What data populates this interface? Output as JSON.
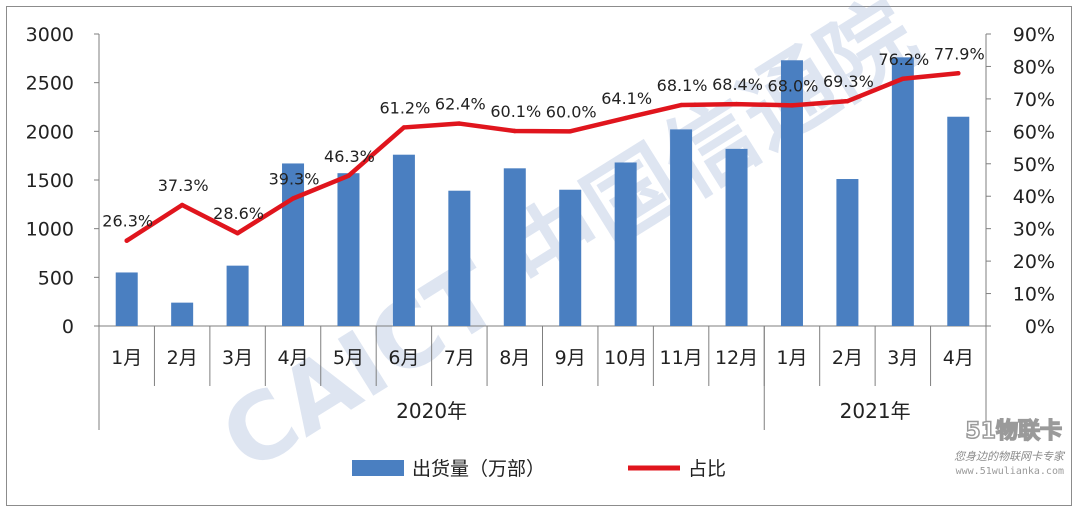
{
  "chart_data": {
    "type": "bar",
    "categories": [
      "1月",
      "2月",
      "3月",
      "4月",
      "5月",
      "6月",
      "7月",
      "8月",
      "9月",
      "10月",
      "11月",
      "12月",
      "1月",
      "2月",
      "3月",
      "4月"
    ],
    "groups": [
      {
        "label": "2020年",
        "count": 12
      },
      {
        "label": "2021年",
        "count": 4
      }
    ],
    "series": [
      {
        "name": "出货量（万部）",
        "type": "bar",
        "axis": "left",
        "color": "#4a7fc1",
        "values": [
          550,
          240,
          620,
          1670,
          1570,
          1760,
          1390,
          1620,
          1400,
          1680,
          2020,
          1820,
          2730,
          1510,
          2760,
          2150
        ]
      },
      {
        "name": "占比",
        "type": "line",
        "axis": "right",
        "color": "#e0151d",
        "values": [
          26.3,
          37.3,
          28.6,
          39.3,
          46.3,
          61.2,
          62.4,
          60.1,
          60.0,
          64.1,
          68.1,
          68.4,
          68.0,
          69.3,
          76.2,
          77.9
        ],
        "labels": [
          "26.3%",
          "37.3%",
          "28.6%",
          "39.3%",
          "46.3%",
          "61.2%",
          "62.4%",
          "60.1%",
          "60.0%",
          "64.1%",
          "68.1%",
          "68.4%",
          "68.0%",
          "69.3%",
          "76.2%",
          "77.9%"
        ]
      }
    ],
    "y_left": {
      "min": 0,
      "max": 3000,
      "ticks": [
        "0",
        "500",
        "1000",
        "1500",
        "2000",
        "2500",
        "3000"
      ]
    },
    "y_right": {
      "min": 0,
      "max": 90,
      "ticks": [
        "0%",
        "10%",
        "20%",
        "30%",
        "40%",
        "50%",
        "60%",
        "70%",
        "80%",
        "90%"
      ]
    },
    "grid": false,
    "legend_position": "bottom"
  },
  "watermark": {
    "text": "CAICT 中国信通院",
    "color": "#9fb3d6"
  },
  "corner_logo": {
    "text": "51物联卡",
    "subtext": "您身边的物联网卡专家",
    "url_text": "www.51wulianka.com"
  }
}
